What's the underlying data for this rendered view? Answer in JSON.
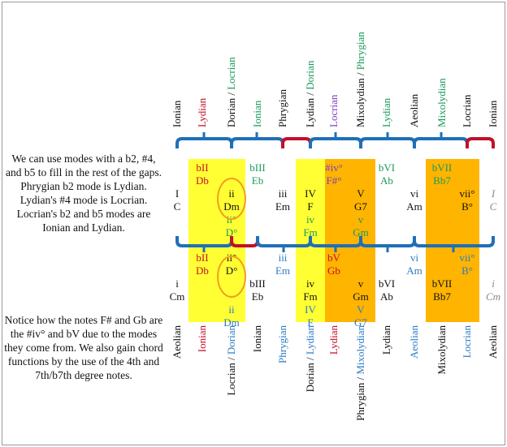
{
  "colors": {
    "black": "#111111",
    "red": "#c0102a",
    "green": "#1a9a5a",
    "purple": "#7b3fbf",
    "blue": "#2e7bc4",
    "gray": "#8a8a8a",
    "yellow": "#ffff33",
    "orange": "#ffb400",
    "bracket_blue": "#1f6fb8",
    "bracket_red": "#c0102a",
    "circle": "#f0a020"
  },
  "top_modes": [
    {
      "text": "Ionian",
      "color": "black"
    },
    {
      "text": "Lydian",
      "color": "red"
    },
    {
      "text": "Dorian / Locrian",
      "color": "mixed",
      "parts": [
        [
          "Dorian / ",
          "black"
        ],
        [
          "Locrian",
          "green"
        ]
      ]
    },
    {
      "text": "Ionian",
      "color": "green"
    },
    {
      "text": "Phrygian",
      "color": "black"
    },
    {
      "text": "Lydian / Dorian",
      "color": "mixed",
      "parts": [
        [
          "Lydian / ",
          "black"
        ],
        [
          "Dorian",
          "green"
        ]
      ]
    },
    {
      "text": "Locrian",
      "color": "purple"
    },
    {
      "text": "Mixolydian / Phrygian",
      "color": "mixed",
      "parts": [
        [
          "Mixolydian / ",
          "black"
        ],
        [
          "Phrygian",
          "green"
        ]
      ]
    },
    {
      "text": "Lydian",
      "color": "green"
    },
    {
      "text": "Aeolian",
      "color": "black"
    },
    {
      "text": "Mixolydian",
      "color": "green"
    },
    {
      "text": "Locrian",
      "color": "black"
    },
    {
      "text": "Ionian",
      "color": "black"
    }
  ],
  "bottom_modes": [
    {
      "text": "Aeolian",
      "color": "black"
    },
    {
      "text": "Ionian",
      "color": "red"
    },
    {
      "text": "Locrian / Dorian",
      "color": "mixed",
      "parts": [
        [
          "Locrian / ",
          "black"
        ],
        [
          "Dorian",
          "blue"
        ]
      ]
    },
    {
      "text": "Ionian",
      "color": "black"
    },
    {
      "text": "Phrygian",
      "color": "blue"
    },
    {
      "text": "Dorian / Lydian",
      "color": "mixed",
      "parts": [
        [
          "Dorian / ",
          "black"
        ],
        [
          "Lydian",
          "blue"
        ]
      ]
    },
    {
      "text": "Lydian",
      "color": "red"
    },
    {
      "text": "Phrygian / Mixolydian",
      "color": "mixed",
      "parts": [
        [
          "Phrygian / ",
          "black"
        ],
        [
          "Mixolydian",
          "blue"
        ]
      ]
    },
    {
      "text": "Lydian",
      "color": "black"
    },
    {
      "text": "Aeolian",
      "color": "blue"
    },
    {
      "text": "Mixolydian",
      "color": "black"
    },
    {
      "text": "Locrian",
      "color": "blue"
    },
    {
      "text": "Aeolian",
      "color": "black"
    }
  ],
  "text_blocks": [
    {
      "id": "intro",
      "text": "We can use modes with a b2, #4, and b5 to fill in the rest of the gaps. Phrygian b2 mode is Lydian. Lydian's #4 mode is Locrian. Locrian's b2 and b5 modes are Ionian and Lydian."
    },
    {
      "id": "note",
      "text": "Notice how the notes F# and Gb are the #iv° and bV due to the modes they come from. We also gain chord functions by the use of the 4th and 7th/b7th degree notes."
    }
  ],
  "major_rows": [
    {
      "cells": [
        "",
        "bII",
        "",
        "bIII",
        "",
        "",
        "#iv°",
        "",
        "bVI",
        "",
        "bVII",
        "",
        ""
      ],
      "colors": [
        "",
        "red",
        "",
        "green",
        "",
        "",
        "purple",
        "",
        "green",
        "",
        "green",
        "",
        ""
      ]
    },
    {
      "cells": [
        "",
        "Db",
        "",
        "Eb",
        "",
        "",
        "F#°",
        "",
        "Ab",
        "",
        "Bb7",
        "",
        ""
      ],
      "colors": [
        "",
        "red",
        "",
        "green",
        "",
        "",
        "purple",
        "",
        "green",
        "",
        "green",
        "",
        ""
      ]
    },
    {
      "cells": [
        "I",
        "",
        "ii",
        "",
        "iii",
        "IV",
        "",
        "V",
        "",
        "vi",
        "",
        "vii°",
        "I"
      ],
      "colors": [
        "black",
        "",
        "black",
        "",
        "black",
        "black",
        "",
        "black",
        "",
        "black",
        "",
        "black",
        "gray"
      ]
    },
    {
      "cells": [
        "C",
        "",
        "Dm",
        "",
        "Em",
        "F",
        "",
        "G7",
        "",
        "Am",
        "",
        "B°",
        "C"
      ],
      "colors": [
        "black",
        "",
        "black",
        "",
        "black",
        "black",
        "",
        "black",
        "",
        "black",
        "",
        "black",
        "gray"
      ]
    },
    {
      "cells": [
        "",
        "",
        "ii°",
        "",
        "",
        "iv",
        "",
        "v",
        "",
        "",
        "",
        "",
        ""
      ],
      "colors": [
        "",
        "",
        "green",
        "",
        "",
        "green",
        "",
        "green",
        "",
        "",
        "",
        "",
        ""
      ]
    },
    {
      "cells": [
        "",
        "",
        "D°",
        "",
        "",
        "Fm",
        "",
        "Gm",
        "",
        "",
        "",
        "",
        ""
      ],
      "colors": [
        "",
        "",
        "green",
        "",
        "",
        "green",
        "",
        "green",
        "",
        "",
        "",
        "",
        ""
      ]
    }
  ],
  "minor_rows": [
    {
      "cells": [
        "",
        "bII",
        "ii°",
        "",
        "iii",
        "",
        "bV",
        "",
        "",
        "vi",
        "",
        "vii°",
        ""
      ],
      "colors": [
        "",
        "red",
        "black",
        "",
        "blue",
        "",
        "red",
        "",
        "",
        "blue",
        "",
        "blue",
        ""
      ]
    },
    {
      "cells": [
        "",
        "Db",
        "D°",
        "",
        "Em",
        "",
        "Gb",
        "",
        "",
        "Am",
        "",
        "B°",
        ""
      ],
      "colors": [
        "",
        "red",
        "black",
        "",
        "blue",
        "",
        "red",
        "",
        "",
        "blue",
        "",
        "blue",
        ""
      ]
    },
    {
      "cells": [
        "i",
        "",
        "",
        "bIII",
        "",
        "iv",
        "",
        "v",
        "bVI",
        "",
        "bVII",
        "",
        "i"
      ],
      "colors": [
        "black",
        "",
        "",
        "black",
        "",
        "black",
        "",
        "black",
        "black",
        "",
        "black",
        "",
        "gray"
      ]
    },
    {
      "cells": [
        "Cm",
        "",
        "",
        "Eb",
        "",
        "Fm",
        "",
        "Gm",
        "Ab",
        "",
        "Bb7",
        "",
        "Cm"
      ],
      "colors": [
        "black",
        "",
        "",
        "black",
        "",
        "black",
        "",
        "black",
        "black",
        "",
        "black",
        "",
        "gray"
      ]
    },
    {
      "cells": [
        "",
        "",
        "ii",
        "",
        "",
        "IV",
        "",
        "V",
        "",
        "",
        "",
        "",
        ""
      ],
      "colors": [
        "",
        "",
        "blue",
        "",
        "",
        "blue",
        "",
        "blue",
        "",
        "",
        "",
        "",
        ""
      ]
    },
    {
      "cells": [
        "",
        "",
        "Dm",
        "",
        "",
        "F",
        "",
        "G7",
        "",
        "",
        "",
        "",
        ""
      ],
      "colors": [
        "",
        "",
        "blue",
        "",
        "",
        "blue",
        "",
        "blue",
        "",
        "",
        "",
        "",
        ""
      ]
    }
  ]
}
